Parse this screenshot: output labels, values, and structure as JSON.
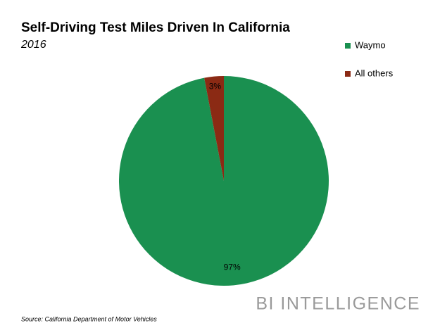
{
  "chart_data": {
    "type": "pie",
    "title": "Self-Driving Test Miles Driven In California",
    "subtitle": "2016",
    "categories": [
      "Waymo",
      "All others"
    ],
    "values": [
      97,
      3
    ],
    "value_labels": [
      "97%",
      "3%"
    ],
    "colors": [
      "#1a9050",
      "#8b2a14"
    ],
    "legend": "right",
    "source": "Source: California Department of Motor Vehicles",
    "brand": "BI INTELLIGENCE"
  }
}
